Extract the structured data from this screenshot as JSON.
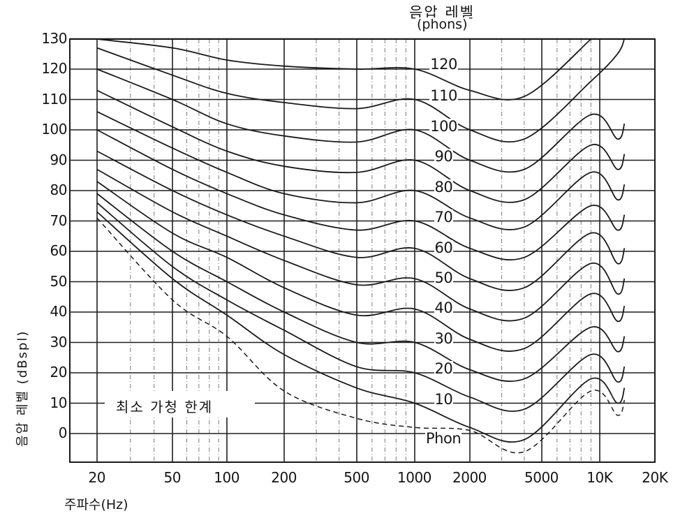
{
  "chart_data": {
    "type": "line",
    "title": "음압 레벨 (phons)",
    "legend_title": "음압 레벨",
    "legend_unit": "(phons)",
    "xlabel": "주파수(Hz)",
    "ylabel": "음압 레벨 (dBspl)",
    "x_scale": "log",
    "xlim": [
      16,
      20000
    ],
    "ylim": [
      -10,
      130
    ],
    "grid": true,
    "x_ticks": [
      "20",
      "50",
      "100",
      "200",
      "500",
      "1000",
      "2000",
      "5000",
      "10K",
      "20K"
    ],
    "y_ticks": [
      "130",
      "120",
      "110",
      "100",
      "90",
      "80",
      "70",
      "60",
      "50",
      "40",
      "30",
      "20",
      "10",
      "0"
    ],
    "x": [
      20,
      50,
      100,
      200,
      500,
      1000,
      2000,
      4000,
      9000,
      12500
    ],
    "series": [
      {
        "name": "120",
        "label": "120",
        "values": [
          131,
          127,
          123,
          121,
          120,
          120,
          113,
          111,
          131,
          null
        ]
      },
      {
        "name": "110",
        "label": "110",
        "values": [
          127,
          118,
          112,
          109,
          107,
          110,
          100,
          97,
          116,
          125
        ]
      },
      {
        "name": "100",
        "label": "100",
        "values": [
          120,
          110,
          102,
          98,
          96,
          100,
          90,
          87,
          105,
          97
        ]
      },
      {
        "name": "90",
        "label": "90",
        "values": [
          113,
          101,
          93,
          88,
          86,
          90,
          80,
          77,
          95,
          87
        ]
      },
      {
        "name": "80",
        "label": "80",
        "values": [
          106,
          94,
          86,
          79,
          76,
          80,
          71,
          68,
          86,
          77
        ]
      },
      {
        "name": "70",
        "label": "70",
        "values": [
          100,
          87,
          79,
          72,
          67,
          70,
          61,
          58,
          75,
          67
        ]
      },
      {
        "name": "60",
        "label": "60",
        "values": [
          93,
          80,
          72,
          65,
          58,
          61,
          51,
          48,
          66,
          56
        ]
      },
      {
        "name": "50",
        "label": "50",
        "values": [
          87,
          73,
          65,
          57,
          49,
          51,
          41,
          38,
          56,
          46
        ]
      },
      {
        "name": "40",
        "label": "40",
        "values": [
          83,
          66,
          58,
          48,
          39,
          41,
          31,
          28,
          46,
          37
        ]
      },
      {
        "name": "30",
        "label": "30",
        "values": [
          79,
          60,
          50,
          40,
          30,
          30,
          21,
          18,
          35,
          27
        ]
      },
      {
        "name": "20",
        "label": "20",
        "values": [
          76,
          55,
          44,
          34,
          22,
          20,
          12,
          8,
          26,
          17
        ]
      },
      {
        "name": "10",
        "label": "10",
        "values": [
          73,
          51,
          39,
          26,
          15,
          10,
          2,
          -2,
          18,
          10
        ]
      },
      {
        "name": "최소 가청 한계",
        "label": "Phon",
        "style": "dashed",
        "values": [
          71,
          44,
          32,
          14,
          5,
          2,
          1,
          -6,
          14,
          6
        ]
      }
    ],
    "annotations": [
      "최소 가청 한계",
      "Phon"
    ],
    "line_color": "#1a1a1a",
    "grid_color": "#222222",
    "minor_grid_color": "#777777"
  },
  "labels": {
    "legend_title": "음압 레벨",
    "legend_unit": "(phons)",
    "ylabel": "음압 레벨 (dBspl)",
    "xlabel": "주파수(Hz)",
    "threshold_annotation": "최소 가청 한계",
    "phon_labels": [
      "120",
      "110",
      "100",
      "90",
      "80",
      "70",
      "60",
      "50",
      "40",
      "30",
      "20",
      "10",
      "Phon"
    ],
    "y_ticks": [
      "130",
      "120",
      "110",
      "100",
      "90",
      "80",
      "70",
      "60",
      "50",
      "40",
      "30",
      "20",
      "10",
      "0"
    ],
    "x_ticks": [
      "20",
      "50",
      "100",
      "200",
      "500",
      "1000",
      "2000",
      "5000",
      "10K",
      "20K"
    ]
  }
}
